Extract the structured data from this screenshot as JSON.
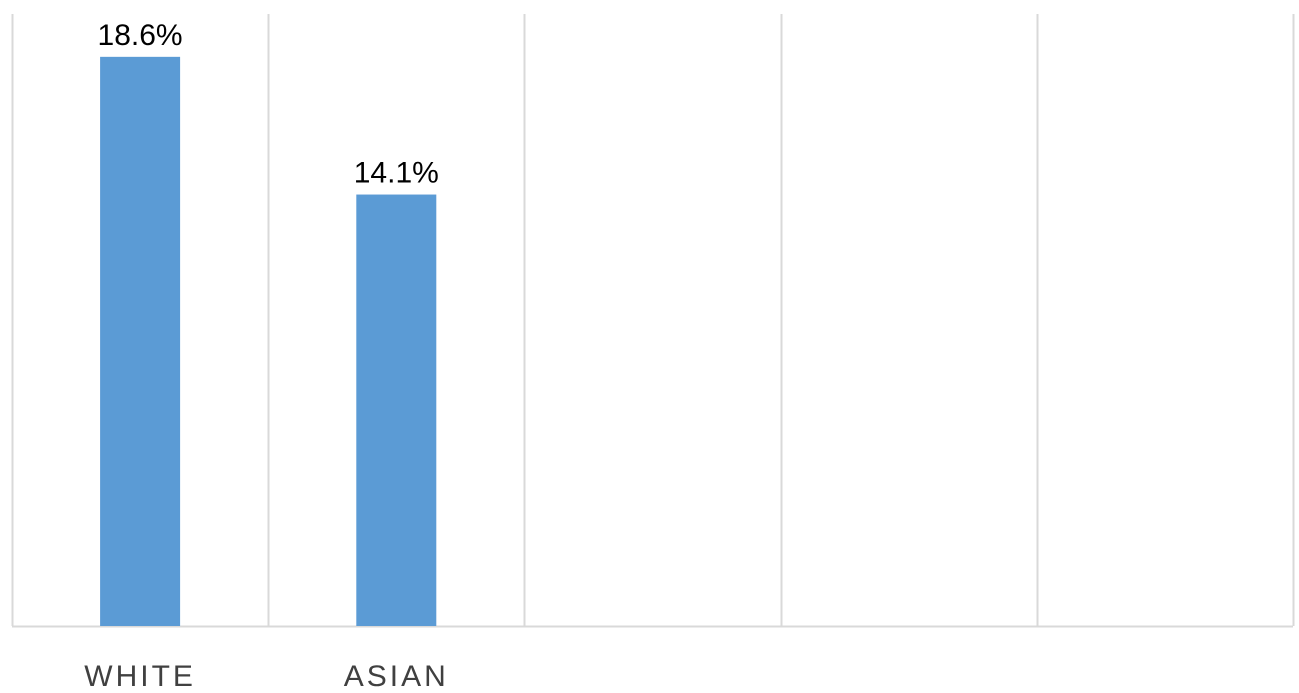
{
  "chart_data": {
    "type": "bar",
    "slots": 5,
    "categories": [
      "WHITE",
      "ASIAN"
    ],
    "values": [
      18.6,
      14.1
    ],
    "data_labels": [
      "18.6%",
      "14.1%"
    ],
    "unit": "%",
    "ylim": [
      0,
      20
    ],
    "grid": "vertical category separators",
    "legend": "none",
    "colors": {
      "bar": "#5B9BD5",
      "grid": "#D9D9D9",
      "axis": "#D9D9D9",
      "category_text": "#404040",
      "label_text": "#000000"
    }
  }
}
